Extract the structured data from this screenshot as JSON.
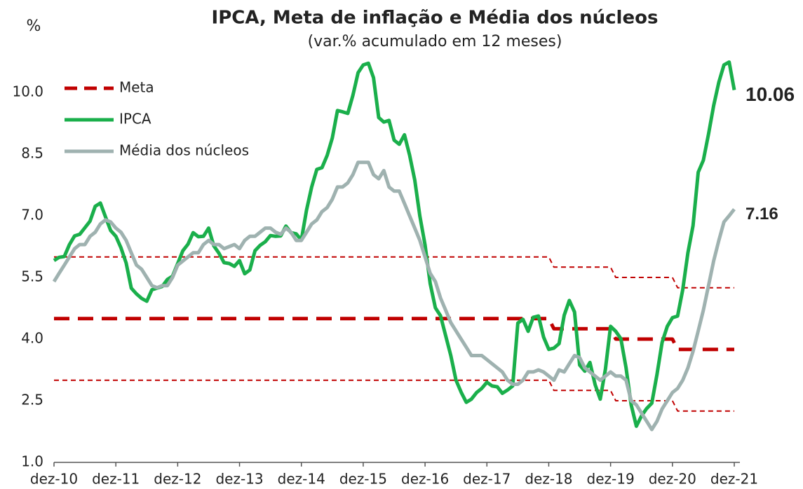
{
  "chart_data": {
    "type": "line",
    "title": "IPCA, Meta de inflação e Média dos núcleos",
    "subtitle": "(var.% acumulado em 12 meses)",
    "y_label": "%",
    "categories": [
      "dez-10",
      null,
      null,
      null,
      null,
      null,
      null,
      null,
      null,
      null,
      null,
      null,
      "dez-11",
      null,
      null,
      null,
      null,
      null,
      null,
      null,
      null,
      null,
      null,
      null,
      "dez-12",
      null,
      null,
      null,
      null,
      null,
      null,
      null,
      null,
      null,
      null,
      null,
      "dez-13",
      null,
      null,
      null,
      null,
      null,
      null,
      null,
      null,
      null,
      null,
      null,
      "dez-14",
      null,
      null,
      null,
      null,
      null,
      null,
      null,
      null,
      null,
      null,
      null,
      "dez-15",
      null,
      null,
      null,
      null,
      null,
      null,
      null,
      null,
      null,
      null,
      null,
      "dez-16",
      null,
      null,
      null,
      null,
      null,
      null,
      null,
      null,
      null,
      null,
      null,
      "dez-17",
      null,
      null,
      null,
      null,
      null,
      null,
      null,
      null,
      null,
      null,
      null,
      "dez-18",
      null,
      null,
      null,
      null,
      null,
      null,
      null,
      null,
      null,
      null,
      null,
      "dez-19",
      null,
      null,
      null,
      null,
      null,
      null,
      null,
      null,
      null,
      null,
      null,
      "dez-20",
      null,
      null,
      null,
      null,
      null,
      null,
      null,
      null,
      null,
      null,
      null,
      "dez-21"
    ],
    "ylim": [
      1.0,
      11.0
    ],
    "yticks": [
      {
        "value": 1.0,
        "label": "1.0"
      },
      {
        "value": 2.5,
        "label": "2.5"
      },
      {
        "value": 4.0,
        "label": "4.0"
      },
      {
        "value": 5.5,
        "label": "5.5"
      },
      {
        "value": 7.0,
        "label": "7.0"
      },
      {
        "value": 8.5,
        "label": "8.5"
      },
      {
        "value": 10.0,
        "label": "10.0"
      }
    ],
    "grid": false,
    "legend": "top-left",
    "series": [
      {
        "color": "#c00000",
        "line_style": "fine-dash",
        "values": [
          6,
          6,
          6,
          6,
          6,
          6,
          6,
          6,
          6,
          6,
          6,
          6,
          6,
          6,
          6,
          6,
          6,
          6,
          6,
          6,
          6,
          6,
          6,
          6,
          6,
          6,
          6,
          6,
          6,
          6,
          6,
          6,
          6,
          6,
          6,
          6,
          6,
          6,
          6,
          6,
          6,
          6,
          6,
          6,
          6,
          6,
          6,
          6,
          6,
          6,
          6,
          6,
          6,
          6,
          6,
          6,
          6,
          6,
          6,
          6,
          6,
          6,
          6,
          6,
          6,
          6,
          6,
          6,
          6,
          6,
          6,
          6,
          6,
          6,
          6,
          6,
          6,
          6,
          6,
          6,
          6,
          6,
          6,
          6,
          6,
          6,
          6,
          6,
          6,
          6,
          6,
          6,
          6,
          6,
          6,
          6,
          6,
          5.75,
          5.75,
          5.75,
          5.75,
          5.75,
          5.75,
          5.75,
          5.75,
          5.75,
          5.75,
          5.75,
          5.75,
          5.5,
          5.5,
          5.5,
          5.5,
          5.5,
          5.5,
          5.5,
          5.5,
          5.5,
          5.5,
          5.5,
          5.5,
          5.25,
          5.25,
          5.25,
          5.25,
          5.25,
          5.25,
          5.25,
          5.25,
          5.25,
          5.25,
          5.25,
          5.25
        ]
      },
      {
        "color": "#c00000",
        "line_style": "fine-dash",
        "values": [
          3,
          3,
          3,
          3,
          3,
          3,
          3,
          3,
          3,
          3,
          3,
          3,
          3,
          3,
          3,
          3,
          3,
          3,
          3,
          3,
          3,
          3,
          3,
          3,
          3,
          3,
          3,
          3,
          3,
          3,
          3,
          3,
          3,
          3,
          3,
          3,
          3,
          3,
          3,
          3,
          3,
          3,
          3,
          3,
          3,
          3,
          3,
          3,
          3,
          3,
          3,
          3,
          3,
          3,
          3,
          3,
          3,
          3,
          3,
          3,
          3,
          3,
          3,
          3,
          3,
          3,
          3,
          3,
          3,
          3,
          3,
          3,
          3,
          3,
          3,
          3,
          3,
          3,
          3,
          3,
          3,
          3,
          3,
          3,
          3,
          3,
          3,
          3,
          3,
          3,
          3,
          3,
          3,
          3,
          3,
          3,
          3,
          2.75,
          2.75,
          2.75,
          2.75,
          2.75,
          2.75,
          2.75,
          2.75,
          2.75,
          2.75,
          2.75,
          2.75,
          2.5,
          2.5,
          2.5,
          2.5,
          2.5,
          2.5,
          2.5,
          2.5,
          2.5,
          2.5,
          2.5,
          2.5,
          2.25,
          2.25,
          2.25,
          2.25,
          2.25,
          2.25,
          2.25,
          2.25,
          2.25,
          2.25,
          2.25,
          2.25
        ]
      },
      {
        "name": "Meta",
        "color": "#c00000",
        "line_style": "dash",
        "values": [
          4.5,
          4.5,
          4.5,
          4.5,
          4.5,
          4.5,
          4.5,
          4.5,
          4.5,
          4.5,
          4.5,
          4.5,
          4.5,
          4.5,
          4.5,
          4.5,
          4.5,
          4.5,
          4.5,
          4.5,
          4.5,
          4.5,
          4.5,
          4.5,
          4.5,
          4.5,
          4.5,
          4.5,
          4.5,
          4.5,
          4.5,
          4.5,
          4.5,
          4.5,
          4.5,
          4.5,
          4.5,
          4.5,
          4.5,
          4.5,
          4.5,
          4.5,
          4.5,
          4.5,
          4.5,
          4.5,
          4.5,
          4.5,
          4.5,
          4.5,
          4.5,
          4.5,
          4.5,
          4.5,
          4.5,
          4.5,
          4.5,
          4.5,
          4.5,
          4.5,
          4.5,
          4.5,
          4.5,
          4.5,
          4.5,
          4.5,
          4.5,
          4.5,
          4.5,
          4.5,
          4.5,
          4.5,
          4.5,
          4.5,
          4.5,
          4.5,
          4.5,
          4.5,
          4.5,
          4.5,
          4.5,
          4.5,
          4.5,
          4.5,
          4.5,
          4.5,
          4.5,
          4.5,
          4.5,
          4.5,
          4.5,
          4.5,
          4.5,
          4.5,
          4.5,
          4.5,
          4.5,
          4.25,
          4.25,
          4.25,
          4.25,
          4.25,
          4.25,
          4.25,
          4.25,
          4.25,
          4.25,
          4.25,
          4.25,
          4,
          4,
          4,
          4,
          4,
          4,
          4,
          4,
          4,
          4,
          4,
          4,
          3.75,
          3.75,
          3.75,
          3.75,
          3.75,
          3.75,
          3.75,
          3.75,
          3.75,
          3.75,
          3.75,
          3.75
        ]
      },
      {
        "name": "IPCA",
        "color": "#1aaf4b",
        "line_style": "solid",
        "end_label": true,
        "values": [
          5.91,
          5.99,
          6.01,
          6.3,
          6.51,
          6.55,
          6.71,
          6.87,
          7.23,
          7.31,
          6.97,
          6.64,
          6.5,
          6.22,
          5.85,
          5.24,
          5.1,
          4.99,
          4.92,
          5.2,
          5.24,
          5.28,
          5.45,
          5.53,
          5.84,
          6.15,
          6.31,
          6.59,
          6.49,
          6.5,
          6.7,
          6.27,
          6.09,
          5.86,
          5.84,
          5.77,
          5.91,
          5.59,
          5.68,
          6.15,
          6.28,
          6.37,
          6.52,
          6.5,
          6.51,
          6.75,
          6.59,
          6.56,
          6.41,
          7.14,
          7.7,
          8.13,
          8.17,
          8.47,
          8.89,
          9.56,
          9.53,
          9.49,
          9.93,
          10.48,
          10.67,
          10.71,
          10.36,
          9.39,
          9.28,
          9.32,
          8.84,
          8.74,
          8.97,
          8.48,
          7.87,
          6.99,
          6.29,
          5.35,
          4.76,
          4.57,
          4.08,
          3.6,
          3.0,
          2.71,
          2.46,
          2.54,
          2.7,
          2.8,
          2.95,
          2.86,
          2.84,
          2.68,
          2.76,
          2.86,
          4.39,
          4.48,
          4.19,
          4.53,
          4.56,
          4.05,
          3.75,
          3.78,
          3.89,
          4.58,
          4.94,
          4.66,
          3.37,
          3.22,
          3.43,
          2.89,
          2.54,
          3.27,
          4.31,
          4.19,
          4.01,
          3.3,
          2.4,
          1.88,
          2.13,
          2.31,
          2.44,
          3.14,
          3.92,
          4.31,
          4.52,
          4.56,
          5.2,
          6.1,
          6.76,
          8.06,
          8.35,
          8.99,
          9.68,
          10.25,
          10.67,
          10.74,
          10.06
        ]
      },
      {
        "name": "Média dos núcleos",
        "color": "#9fb2b0",
        "line_style": "solid",
        "end_label": true,
        "values": [
          5.4,
          5.6,
          5.8,
          6.0,
          6.2,
          6.3,
          6.3,
          6.5,
          6.6,
          6.8,
          6.9,
          6.85,
          6.7,
          6.6,
          6.4,
          6.1,
          5.8,
          5.7,
          5.5,
          5.3,
          5.25,
          5.3,
          5.3,
          5.5,
          5.8,
          5.9,
          6.0,
          6.1,
          6.1,
          6.3,
          6.4,
          6.3,
          6.3,
          6.2,
          6.25,
          6.3,
          6.2,
          6.4,
          6.5,
          6.5,
          6.6,
          6.7,
          6.7,
          6.6,
          6.55,
          6.7,
          6.6,
          6.4,
          6.4,
          6.6,
          6.8,
          6.9,
          7.1,
          7.2,
          7.4,
          7.7,
          7.7,
          7.8,
          8.0,
          8.3,
          8.3,
          8.3,
          8.0,
          7.9,
          8.1,
          7.7,
          7.6,
          7.6,
          7.3,
          7.0,
          6.7,
          6.4,
          6.0,
          5.6,
          5.4,
          5.0,
          4.7,
          4.4,
          4.2,
          4.0,
          3.8,
          3.6,
          3.6,
          3.6,
          3.5,
          3.4,
          3.3,
          3.2,
          3.0,
          2.9,
          2.9,
          3.0,
          3.2,
          3.2,
          3.25,
          3.2,
          3.1,
          3.0,
          3.25,
          3.2,
          3.4,
          3.6,
          3.55,
          3.3,
          3.2,
          3.1,
          3.0,
          3.1,
          3.2,
          3.1,
          3.1,
          3.0,
          2.5,
          2.4,
          2.2,
          2.0,
          1.8,
          2.0,
          2.3,
          2.5,
          2.7,
          2.8,
          3.0,
          3.3,
          3.7,
          4.2,
          4.7,
          5.3,
          5.9,
          6.4,
          6.85,
          7.0,
          7.16
        ]
      }
    ]
  }
}
